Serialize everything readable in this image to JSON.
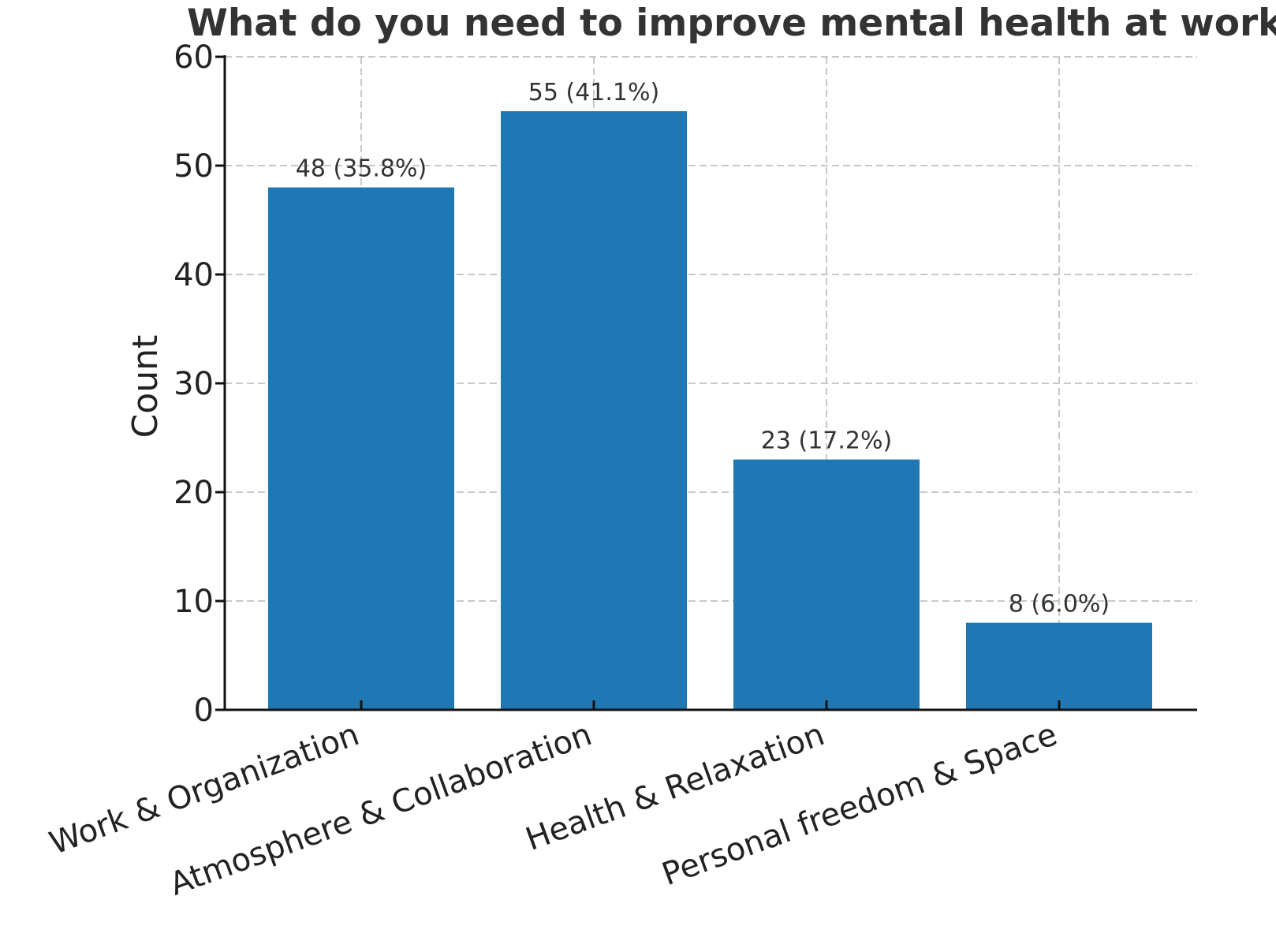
{
  "chart_data": {
    "type": "bar",
    "title": "What do you need to improve mental health at work?",
    "xlabel": "",
    "ylabel": "Count",
    "categories": [
      "Work & Organization",
      "Atmosphere & Collaboration",
      "Health & Relaxation",
      "Personal freedom & Space"
    ],
    "values": [
      48,
      55,
      23,
      8
    ],
    "data_labels": [
      "48 (35.8%)",
      "55 (41.1%)",
      "23 (17.2%)",
      "8 (6.0%)"
    ],
    "ylim": [
      0,
      60
    ],
    "yticks": [
      0,
      10,
      20,
      30,
      40,
      50,
      60
    ],
    "grid": true,
    "bar_color": "#1f77b4"
  }
}
